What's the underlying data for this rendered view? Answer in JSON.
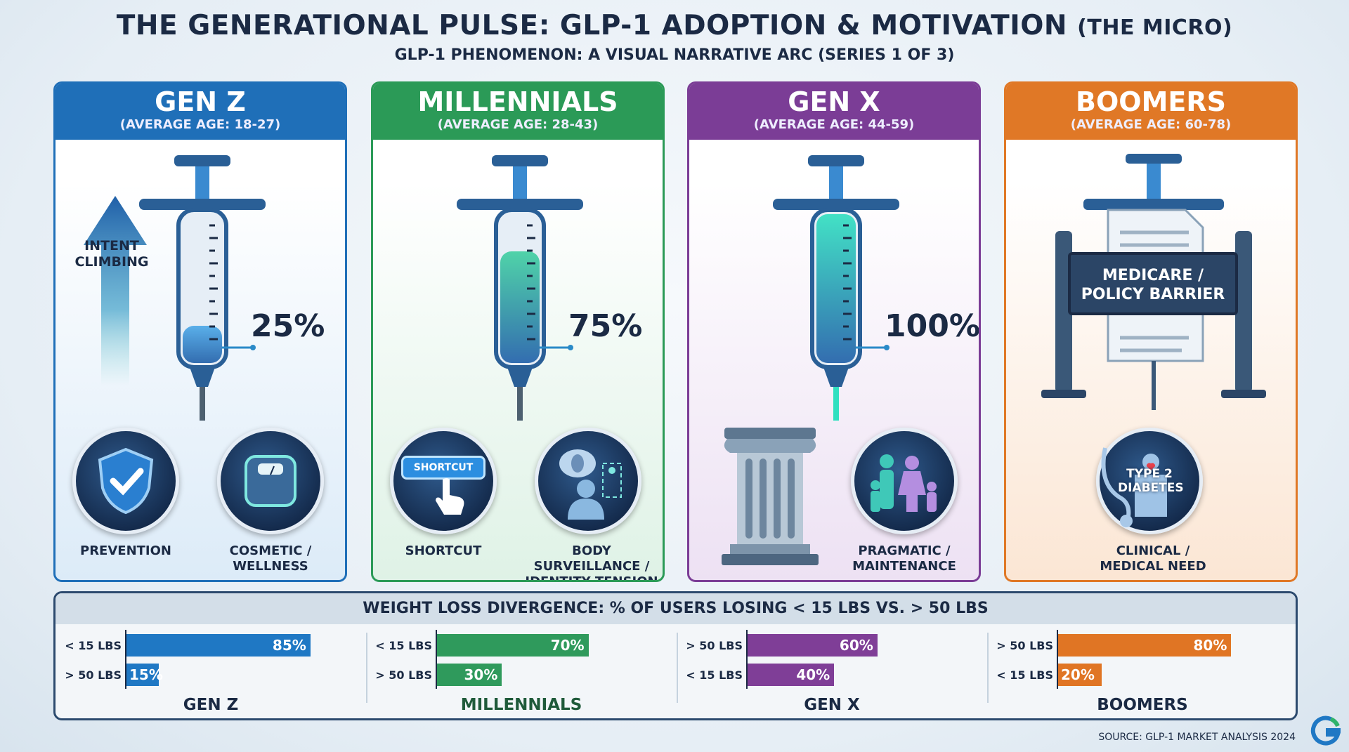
{
  "header": {
    "title": "THE GENERATIONAL PULSE: GLP-1 ADOPTION & MOTIVATION",
    "title_suffix": "(THE MICRO)",
    "subtitle": "GLP-1 PHENOMENON: A VISUAL NARRATIVE ARC (SERIES 1 OF 3)"
  },
  "panels": [
    {
      "name": "GEN Z",
      "age": "(AVERAGE AGE: 18-27)",
      "color": "#1f6fb8",
      "tint": "#dcebf8",
      "syringe_fill_pct": 25,
      "percent_label": "25%",
      "intent_label": "INTENT CLIMBING",
      "icons": [
        {
          "icon": "shield-check-icon",
          "label": "PREVENTION"
        },
        {
          "icon": "scale-icon",
          "label": "COSMETIC / WELLNESS"
        }
      ]
    },
    {
      "name": "MILLENNIALS",
      "age": "(AVERAGE AGE: 28-43)",
      "color": "#2b9a57",
      "tint": "#dff2e6",
      "syringe_fill_pct": 75,
      "percent_label": "75%",
      "icons": [
        {
          "icon": "shortcut-button-icon",
          "label": "SHORTCUT",
          "badge": "SHORTCUT"
        },
        {
          "icon": "body-surveillance-icon",
          "label": "BODY SURVEILLANCE / IDENTITY TENSION"
        }
      ]
    },
    {
      "name": "GEN X",
      "age": "(AVERAGE AGE: 44-59)",
      "color": "#7b3d96",
      "tint": "#ede1f3",
      "syringe_fill_pct": 100,
      "percent_label": "100%",
      "icons": [
        {
          "icon": "pillar-icon",
          "label": ""
        },
        {
          "icon": "family-icon",
          "label": "PRAGMATIC / MAINTENANCE"
        }
      ]
    },
    {
      "name": "BOOMERS",
      "age": "(AVERAGE AGE: 60-78)",
      "color": "#e07826",
      "tint": "#fbe6d4",
      "barrier_label": "MEDICARE / POLICY BARRIER",
      "icons": [
        {
          "icon": "stethoscope-icon",
          "label": "CLINICAL / MEDICAL NEED",
          "badge": "TYPE 2 DIABETES"
        }
      ]
    }
  ],
  "chart_data": {
    "type": "bar",
    "title": "WEIGHT LOSS DIVERGENCE: % OF USERS LOSING < 15 LBS VS. > 50 LBS",
    "xlim": [
      0,
      100
    ],
    "groups": [
      {
        "name": "GEN Z",
        "color": "#1f78c4",
        "bars": [
          {
            "label": "< 15 LBS",
            "value": 85,
            "text": "85%"
          },
          {
            "label": "> 50 LBS",
            "value": 15,
            "text": "15%"
          }
        ]
      },
      {
        "name": "MILLENNIALS",
        "color": "#2f9a5c",
        "bars": [
          {
            "label": "< 15 LBS",
            "value": 70,
            "text": "70%"
          },
          {
            "label": "> 50 LBS",
            "value": 30,
            "text": "30%"
          }
        ]
      },
      {
        "name": "GEN X",
        "color": "#7f3e97",
        "bars": [
          {
            "label": "> 50 LBS",
            "value": 60,
            "text": "60%"
          },
          {
            "label": "< 15 LBS",
            "value": 40,
            "text": "40%"
          }
        ]
      },
      {
        "name": "BOOMERS",
        "color": "#e07524",
        "bars": [
          {
            "label": "> 50 LBS",
            "value": 80,
            "text": "80%"
          },
          {
            "label": "< 15 LBS",
            "value": 20,
            "text": "20%"
          }
        ]
      }
    ]
  },
  "footer": {
    "source": "SOURCE: GLP-1 MARKET ANALYSIS 2024"
  }
}
